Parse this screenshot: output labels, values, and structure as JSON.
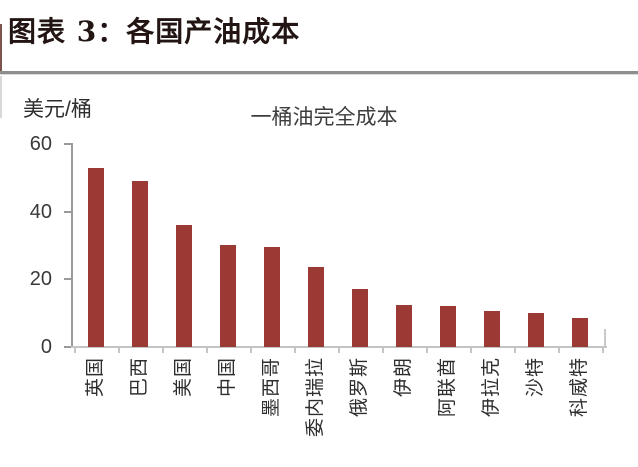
{
  "document": {
    "figure_label": "图表 3：各国产油成本"
  },
  "chart": {
    "unit_label": "美元/桶",
    "title": "一桶油完全成本"
  },
  "chart_data": {
    "type": "bar",
    "title": "一桶油完全成本",
    "xlabel": "",
    "ylabel": "美元/桶",
    "categories": [
      "英国",
      "巴西",
      "美国",
      "中国",
      "墨西哥",
      "委内瑞拉",
      "俄罗斯",
      "伊朗",
      "阿联酋",
      "伊拉克",
      "沙特",
      "科威特"
    ],
    "values": [
      53,
      49,
      36,
      30,
      29.5,
      23.5,
      17,
      12.5,
      12,
      10.5,
      10,
      8.5
    ],
    "ylim": [
      0,
      60
    ],
    "yticks": [
      0,
      20,
      40,
      60
    ],
    "grid": false,
    "legend": null,
    "x_label_rotation_deg": 90,
    "bar_color": "#9b3a34",
    "y_axis_color": "#9a9a9a",
    "x_axis_color": "#c4c4c4"
  }
}
